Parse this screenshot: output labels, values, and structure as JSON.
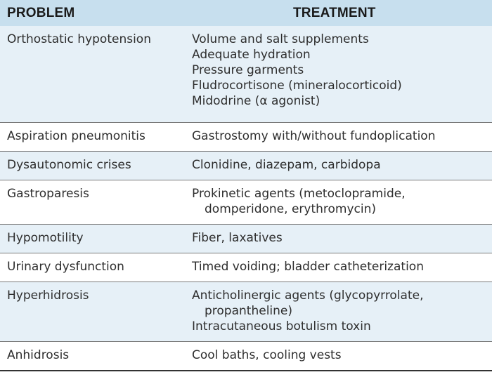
{
  "header": {
    "problem": "PROBLEM",
    "treatment": "TREATMENT"
  },
  "rows": [
    {
      "problem": "Orthostatic hypotension",
      "treatment": [
        "Volume and salt supplements",
        "Adequate hydration",
        "Pressure garments",
        "Fludrocortisone (mineralocorticoid)",
        "Midodrine (α agonist)"
      ]
    },
    {
      "problem": "Aspiration pneumonitis",
      "treatment": [
        "Gastrostomy with/without fundoplication"
      ]
    },
    {
      "problem": "Dysautonomic crises",
      "treatment": [
        "Clonidine, diazepam, carbidopa"
      ]
    },
    {
      "problem": "Gastroparesis",
      "treatment": [
        "Prokinetic agents (metoclopramide,",
        "domperidone, erythromycin)"
      ]
    },
    {
      "problem": "Hypomotility",
      "treatment": [
        "Fiber, laxatives"
      ]
    },
    {
      "problem": "Urinary dysfunction",
      "treatment": [
        "Timed voiding; bladder catheterization"
      ]
    },
    {
      "problem": "Hyperhidrosis",
      "treatment": [
        "Anticholinergic agents (glycopyrrolate,",
        "propantheline)",
        "Intracutaneous botulism toxin"
      ]
    },
    {
      "problem": "Anhidrosis",
      "treatment": [
        "Cool baths, cooling vests"
      ]
    }
  ]
}
